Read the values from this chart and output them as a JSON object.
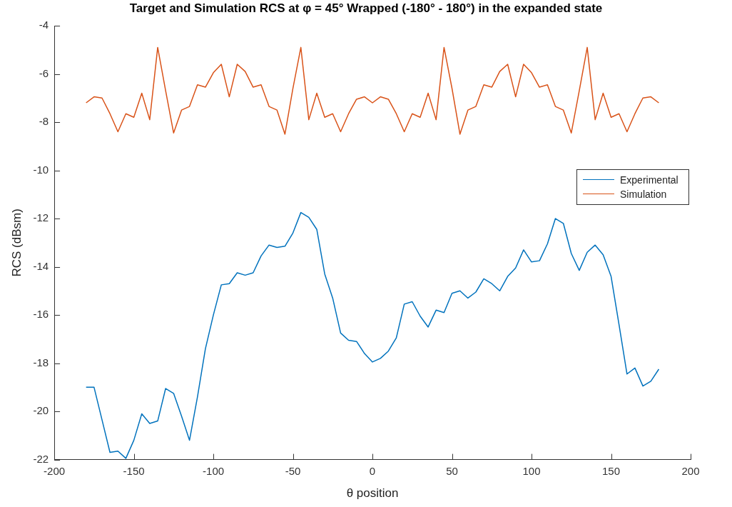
{
  "chart_data": {
    "type": "line",
    "title": "Target and Simulation RCS at φ = 45° Wrapped (-180° - 180°) in the expanded state",
    "xlabel": "θ position",
    "ylabel": "RCS (dBsm)",
    "x": [
      -180,
      -175,
      -170,
      -165,
      -160,
      -155,
      -150,
      -145,
      -140,
      -135,
      -130,
      -125,
      -120,
      -115,
      -110,
      -105,
      -100,
      -95,
      -90,
      -85,
      -80,
      -75,
      -70,
      -65,
      -60,
      -55,
      -50,
      -45,
      -40,
      -35,
      -30,
      -25,
      -20,
      -15,
      -10,
      -5,
      0,
      5,
      10,
      15,
      20,
      25,
      30,
      35,
      40,
      45,
      50,
      55,
      60,
      65,
      70,
      75,
      80,
      85,
      90,
      95,
      100,
      105,
      110,
      115,
      120,
      125,
      130,
      135,
      140,
      145,
      150,
      155,
      160,
      165,
      170,
      175,
      180
    ],
    "series": [
      {
        "name": "Experimental",
        "color": "#0072bd",
        "values": [
          -19.0,
          -19.0,
          -20.35,
          -21.7,
          -21.65,
          -21.95,
          -21.2,
          -20.1,
          -20.5,
          -20.4,
          -19.05,
          -19.25,
          -20.2,
          -21.2,
          -19.4,
          -17.4,
          -16.0,
          -14.75,
          -14.7,
          -14.25,
          -14.35,
          -14.25,
          -13.55,
          -13.1,
          -13.2,
          -13.15,
          -12.6,
          -11.75,
          -11.95,
          -12.45,
          -14.3,
          -15.3,
          -16.75,
          -17.05,
          -17.1,
          -17.6,
          -17.95,
          -17.8,
          -17.5,
          -16.95,
          -15.55,
          -15.45,
          -16.05,
          -16.5,
          -15.8,
          -15.9,
          -15.1,
          -15.0,
          -15.3,
          -15.05,
          -14.5,
          -14.7,
          -15.0,
          -14.4,
          -14.05,
          -13.3,
          -13.8,
          -13.75,
          -13.05,
          -12.0,
          -12.2,
          -13.45,
          -14.15,
          -13.4,
          -13.1,
          -13.5,
          -14.4,
          -16.4,
          -18.45,
          -18.2,
          -18.95,
          -18.75,
          -18.25
        ]
      },
      {
        "name": "Simulation",
        "color": "#d95319",
        "values": [
          -7.2,
          -6.95,
          -7.0,
          -7.65,
          -8.4,
          -7.65,
          -7.8,
          -6.8,
          -7.9,
          -4.9,
          -6.7,
          -8.45,
          -7.5,
          -7.35,
          -6.45,
          -6.55,
          -5.95,
          -5.6,
          -6.95,
          -5.6,
          -5.9,
          -6.55,
          -6.45,
          -7.35,
          -7.5,
          -8.5,
          -6.6,
          -4.9,
          -7.9,
          -6.8,
          -7.8,
          -7.65,
          -8.4,
          -7.65,
          -7.05,
          -6.95,
          -7.2,
          -6.95,
          -7.05,
          -7.65,
          -8.4,
          -7.65,
          -7.8,
          -6.8,
          -7.9,
          -4.9,
          -6.6,
          -8.5,
          -7.5,
          -7.35,
          -6.45,
          -6.55,
          -5.9,
          -5.6,
          -6.95,
          -5.6,
          -5.95,
          -6.55,
          -6.45,
          -7.35,
          -7.5,
          -8.45,
          -6.7,
          -4.9,
          -7.9,
          -6.8,
          -7.8,
          -7.65,
          -8.4,
          -7.65,
          -7.0,
          -6.95,
          -7.2
        ]
      }
    ],
    "xlim": [
      -200,
      200
    ],
    "xticks": [
      -200,
      -150,
      -100,
      -50,
      0,
      50,
      100,
      150,
      200
    ],
    "ylim": [
      -22,
      -4
    ],
    "yticks": [
      -22,
      -20,
      -18,
      -16,
      -14,
      -12,
      -10,
      -8,
      -6,
      -4
    ],
    "grid": false,
    "legend": "right",
    "marker": "none",
    "line_style": "solid"
  }
}
